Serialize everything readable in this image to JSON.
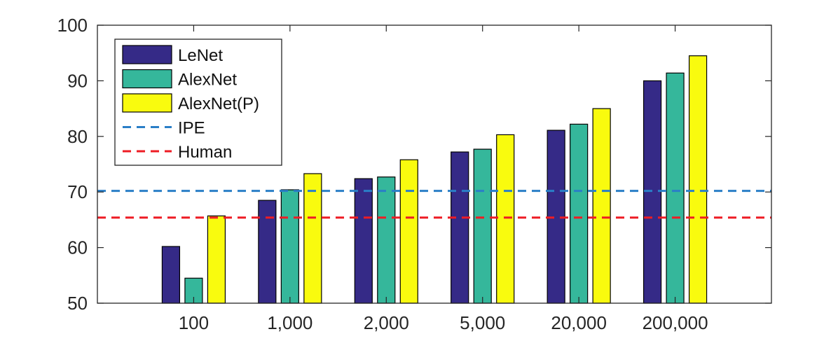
{
  "chart_data": {
    "type": "bar",
    "categories": [
      "100",
      "1,000",
      "2,000",
      "5,000",
      "20,000",
      "200,000"
    ],
    "series": [
      {
        "name": "LeNet",
        "color": "#352a87",
        "values": [
          60.2,
          68.5,
          72.4,
          77.2,
          81.1,
          90.0
        ]
      },
      {
        "name": "AlexNet",
        "color": "#35b79b",
        "values": [
          54.5,
          70.4,
          72.7,
          77.7,
          82.2,
          91.4
        ]
      },
      {
        "name": "AlexNet(P)",
        "color": "#f9fb0e",
        "values": [
          65.7,
          73.3,
          75.8,
          80.3,
          85.0,
          94.5
        ]
      }
    ],
    "reference_lines": [
      {
        "name": "IPE",
        "value": 70.2,
        "color": "#2a7fc7",
        "style": "dashed"
      },
      {
        "name": "Human",
        "value": 65.4,
        "color": "#ee1c24",
        "style": "dashed"
      }
    ],
    "ylim": [
      50,
      100
    ],
    "yticks": [
      "50",
      "60",
      "70",
      "80",
      "90",
      "100"
    ],
    "grid": false,
    "legend_position": "top-left",
    "title": "",
    "xlabel": "",
    "ylabel": ""
  }
}
